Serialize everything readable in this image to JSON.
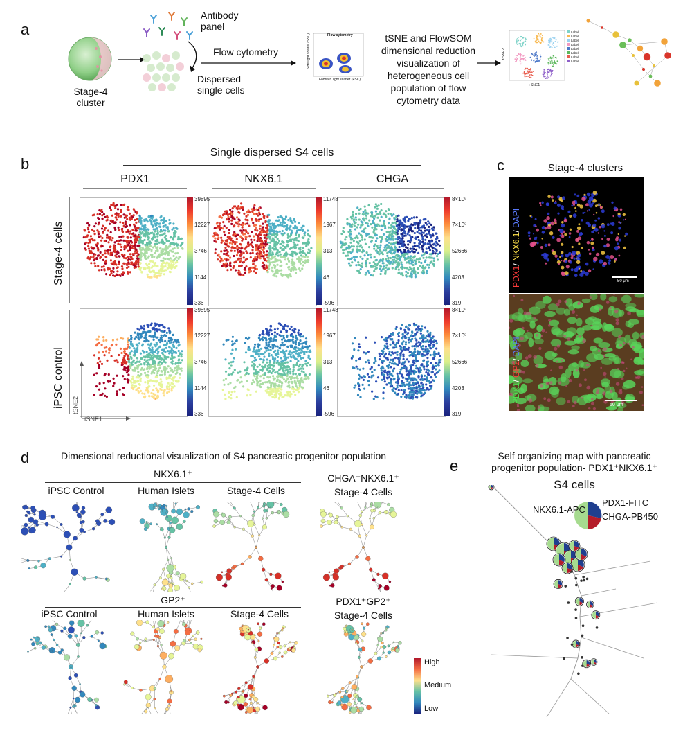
{
  "panel_a": {
    "letter": "a",
    "stage4_label": "Stage-4\ncluster",
    "antibody_label": "Antibody\npanel",
    "dispersed_label": "Dispersed\nsingle cells",
    "flow_label": "Flow cytometry",
    "flow_plot_title": "Flow cytometry",
    "flow_plot_xlabel": "Forward light scatter (FSC)",
    "flow_plot_ylabel": "Side light scatter (SSC)",
    "tsne_text": "tSNE and FlowSOM\ndimensional reduction\nvisualization of\nheterogeneous cell\npopulation of flow\ncytometry data",
    "tsne_xlabel": "t-SNE1",
    "tsne_ylabel": "t-SNE2",
    "legend_items": [
      "Label",
      "Label",
      "Label",
      "Label",
      "Label",
      "Label",
      "Label",
      "Label"
    ],
    "legend_colors": [
      "#7fd3c9",
      "#f8b84e",
      "#9bd2f0",
      "#f29ac2",
      "#4c78c8",
      "#5cb85c",
      "#e85d4e",
      "#8e5fc9"
    ]
  },
  "panel_b": {
    "letter": "b",
    "header": "Single dispersed S4 cells",
    "columns": [
      "PDX1",
      "NKX6.1",
      "CHGA"
    ],
    "rows": [
      "Stage-4 cells",
      "iPSC control"
    ],
    "axis_x": "tSNE1",
    "axis_y": "tSNE2",
    "colorbars": [
      [
        "39895",
        "12227",
        "3746",
        "1144",
        "336"
      ],
      [
        "11748",
        "1967",
        "313",
        "46",
        "-596"
      ],
      [
        "8×10⁶",
        "7×10⁵",
        "52666",
        "4203",
        "319"
      ]
    ]
  },
  "panel_c": {
    "letter": "c",
    "title": "Stage-4 clusters",
    "top_stain": [
      "PDX1",
      "NKX6.1",
      "DAPI"
    ],
    "bottom_stain": [
      "PDX1",
      "GP2",
      "DAPI"
    ],
    "scale_top": "50 μm",
    "scale_bottom": "50 μm"
  },
  "panel_d": {
    "letter": "d",
    "title": "Dimensional reductional visualization of S4 pancreatic progenitor population",
    "group1_header": "NKX6.1⁺",
    "group1_cols": [
      "iPSC Control",
      "Human Islets",
      "Stage-4 Cells"
    ],
    "group1_extra": "CHGA⁺NKX6.1⁺\nStage-4 Cells",
    "group2_header": "GP2⁺",
    "group2_cols": [
      "iPSC Control",
      "Human Islets",
      "Stage-4 Cells"
    ],
    "group2_extra": "PDX1⁺GP2⁺\nStage-4 Cells",
    "scale_labels": [
      "High",
      "Medium",
      "Low"
    ]
  },
  "panel_e": {
    "letter": "e",
    "title": "Self organizing map with pancreatic\nprogenitor population- PDX1⁺NKX6.1⁺",
    "subtitle": "S4 cells",
    "legend": [
      "NKX6.1-APC",
      "PDX1-FITC",
      "CHGA-PB450"
    ],
    "legend_colors": [
      "#a6db8f",
      "#1f3f8f",
      "#b51d2a"
    ]
  }
}
